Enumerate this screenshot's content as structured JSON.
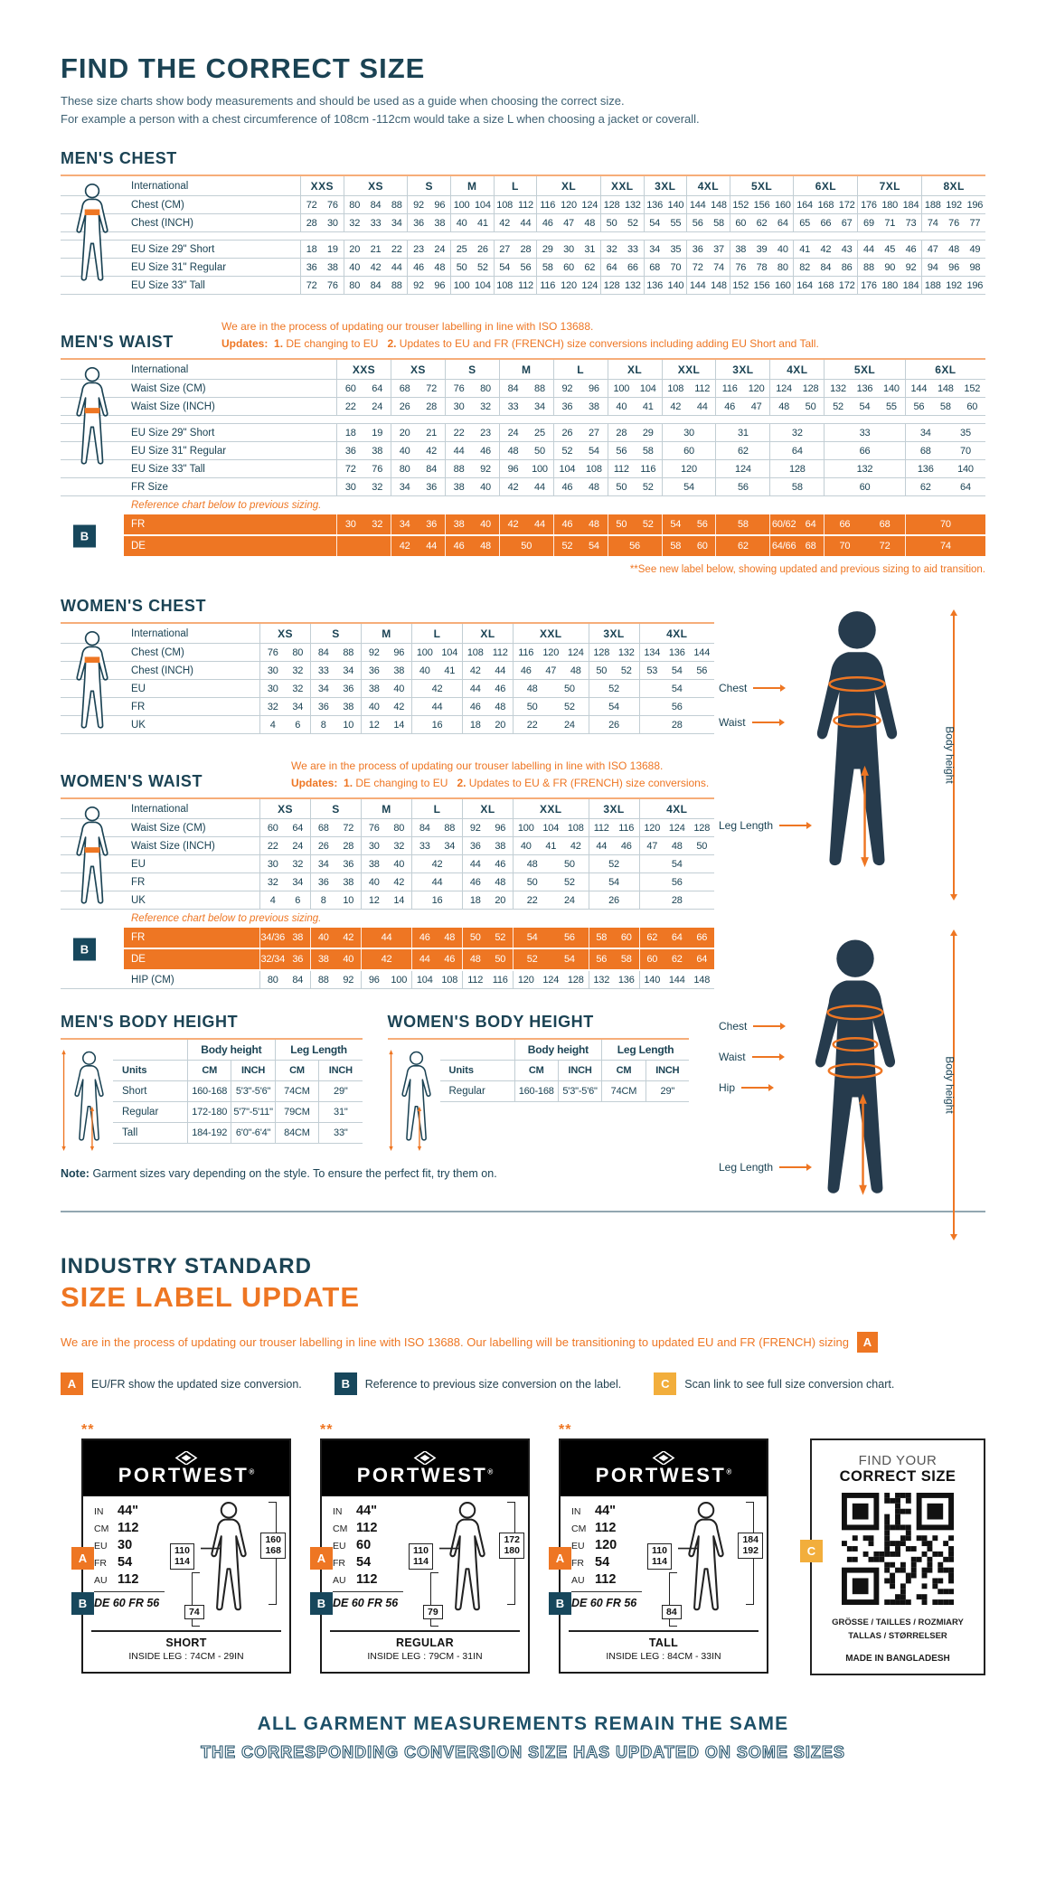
{
  "colors": {
    "navy": "#17475c",
    "orange": "#ee7623",
    "amber": "#f2ae3c"
  },
  "header": {
    "title": "FIND THE CORRECT SIZE",
    "intro1": "These size charts show body measurements and should be used as a guide when choosing the correct size.",
    "intro2": "For example a person with a chest circumference of 108cm -112cm would take a size L when choosing a jacket or coverall."
  },
  "mens_chest": {
    "heading": "MEN'S CHEST",
    "corner": "International",
    "label_col": 195,
    "figure": "chest",
    "columns": [
      [
        "XXS",
        2
      ],
      [
        "XS",
        3
      ],
      [
        "S",
        2
      ],
      [
        "M",
        2
      ],
      [
        "L",
        2
      ],
      [
        "XL",
        3
      ],
      [
        "XXL",
        2
      ],
      [
        "3XL",
        2
      ],
      [
        "4XL",
        2
      ],
      [
        "5XL",
        3
      ],
      [
        "6XL",
        3
      ],
      [
        "7XL",
        3
      ],
      [
        "8XL",
        3
      ]
    ],
    "rows": [
      {
        "label": "Chest (CM)",
        "cells": [
          "72 76",
          "80 84 88",
          "92 96",
          "100 104",
          "108 112",
          "116 120 124",
          "128 132",
          "136 140",
          "144 148",
          "152 156 160",
          "164 168 172",
          "176 180 184",
          "188 192 196"
        ]
      },
      {
        "label": "Chest (INCH)",
        "cells": [
          "28 30",
          "32 33 34",
          "36 38",
          "40 41",
          "42 44",
          "46 47 48",
          "50 52",
          "54 55",
          "56 58",
          "60 62 64",
          "65 66 67",
          "69 71 73",
          "74 76 77"
        ]
      },
      {
        "gap": true
      },
      {
        "label": "EU Size 29\" Short",
        "cells": [
          "18 19",
          "20 21 22",
          "23 24",
          "25 26",
          "27 28",
          "29 30 31",
          "32 33",
          "34 35",
          "36 37",
          "38 39 40",
          "41 42 43",
          "44 45 46",
          "47 48 49"
        ]
      },
      {
        "label": "EU Size 31\" Regular",
        "cells": [
          "36 38",
          "40 42 44",
          "46 48",
          "50 52",
          "54 56",
          "58 60 62",
          "64 66",
          "68 70",
          "72 74",
          "76 78 80",
          "82 84 86",
          "88 90 92",
          "94 96 98"
        ]
      },
      {
        "label": "EU Size 33\" Tall",
        "cells": [
          "72 76",
          "80 84 88",
          "92 96",
          "100 104",
          "108 112",
          "116 120 124",
          "128 132",
          "136 140",
          "144 148",
          "152 156 160",
          "164 168 172",
          "176 180 184",
          "188 192 196"
        ]
      }
    ]
  },
  "mens_waist": {
    "heading": "MEN'S WAIST",
    "corner": "International",
    "label_col": 235,
    "figure": "waist",
    "note": {
      "line1": "We are in the process of updating our trouser labelling in line with ISO 13688.",
      "updates_label": "Updates:",
      "item1_n": "1.",
      "item1": "DE changing to EU",
      "item2_n": "2.",
      "item2": "Updates to EU and FR (FRENCH) size conversions including adding EU Short and Tall."
    },
    "columns": [
      [
        "XXS",
        2
      ],
      [
        "XS",
        2
      ],
      [
        "S",
        2
      ],
      [
        "M",
        2
      ],
      [
        "L",
        2
      ],
      [
        "XL",
        2
      ],
      [
        "XXL",
        2
      ],
      [
        "3XL",
        2
      ],
      [
        "4XL",
        2
      ],
      [
        "5XL",
        3
      ],
      [
        "6XL",
        3
      ]
    ],
    "rows": [
      {
        "label": "Waist Size (CM)",
        "cells": [
          "60 64",
          "68 72",
          "76 80",
          "84 88",
          "92 96",
          "100 104",
          "108 112",
          "116 120",
          "124 128",
          "132 136 140",
          "144 148 152"
        ]
      },
      {
        "label": "Waist Size (INCH)",
        "cells": [
          "22 24",
          "26 28",
          "30 32",
          "33 34",
          "36 38",
          "40 41",
          "42 44",
          "46 47",
          "48 50",
          "52 54 55",
          "56 58 60"
        ]
      },
      {
        "gap": true
      },
      {
        "label": "EU Size 29\" Short",
        "cells": [
          "18 19",
          "20 21",
          "22 23",
          "24 25",
          "26 27",
          "28 29",
          "30",
          "31",
          "32",
          "33",
          "34 35"
        ]
      },
      {
        "label": "EU Size 31\" Regular",
        "cells": [
          "36 38",
          "40 42",
          "44 46",
          "48 50",
          "52 54",
          "56 58",
          "60",
          "62",
          "64",
          "66",
          "68 70"
        ]
      },
      {
        "label": "EU Size 33\" Tall",
        "cells": [
          "72 76",
          "80 84",
          "88 92",
          "96 100",
          "104 108",
          "112 116",
          "120",
          "124",
          "128",
          "132",
          "136 140"
        ]
      },
      {
        "label": "FR Size",
        "cells": [
          "30 32",
          "34 36",
          "38 40",
          "42 44",
          "46 48",
          "50 52",
          "54",
          "56",
          "58",
          "60",
          "62 64"
        ]
      },
      {
        "note": "Reference chart below to previous sizing."
      },
      {
        "orange_block": {
          "badge": "B",
          "rows": [
            {
              "label": "FR",
              "cells": [
                "30 32",
                "34 36",
                "38 40",
                "42 44",
                "46 48",
                "50 52",
                "54 56",
                "58",
                "60/62 64",
                "66 68",
                "70"
              ]
            },
            {
              "label": "DE",
              "cells": [
                "",
                "42 44",
                "46 48",
                "50",
                "52 54",
                "56",
                "58 60",
                "62",
                "64/66 68",
                "70 72",
                "74"
              ]
            }
          ]
        }
      },
      {
        "footnote": "**See new label below, showing updated and previous sizing to aid transition."
      }
    ]
  },
  "womens_chest": {
    "heading": "WOMEN'S CHEST",
    "corner": "International",
    "label_col": 150,
    "figure": "chest_f",
    "columns": [
      [
        "XS",
        2
      ],
      [
        "S",
        2
      ],
      [
        "M",
        2
      ],
      [
        "L",
        2
      ],
      [
        "XL",
        2
      ],
      [
        "XXL",
        3
      ],
      [
        "3XL",
        2
      ],
      [
        "4XL",
        3
      ]
    ],
    "rows": [
      {
        "label": "Chest (CM)",
        "cells": [
          "76 80",
          "84 88",
          "92 96",
          "100 104",
          "108 112",
          "116 120 124",
          "128 132",
          "134 136 144"
        ]
      },
      {
        "label": "Chest (INCH)",
        "cells": [
          "30 32",
          "33 34",
          "36 38",
          "40 41",
          "42 44",
          "46 47 48",
          "50 52",
          "53 54 56"
        ]
      },
      {
        "label": "EU",
        "cells": [
          "30 32",
          "34 36",
          "38 40",
          "42",
          "44 46",
          "48 50",
          "52",
          "54"
        ]
      },
      {
        "label": "FR",
        "cells": [
          "32 34",
          "36 38",
          "40 42",
          "44",
          "46 48",
          "50 52",
          "54",
          "56"
        ]
      },
      {
        "label": "UK",
        "cells": [
          "4 6",
          "8 10",
          "12 14",
          "16",
          "18 20",
          "22 24",
          "26",
          "28"
        ]
      }
    ]
  },
  "womens_waist": {
    "heading": "WOMEN'S WAIST",
    "corner": "International",
    "label_col": 150,
    "figure": "waist_f",
    "note": {
      "line1": "We are in the process of updating our trouser labelling in line with ISO 13688.",
      "updates_label": "Updates:",
      "item1_n": "1.",
      "item1": "DE changing to EU",
      "item2_n": "2.",
      "item2": "Updates to EU & FR (FRENCH) size conversions."
    },
    "columns": [
      [
        "XS",
        2
      ],
      [
        "S",
        2
      ],
      [
        "M",
        2
      ],
      [
        "L",
        2
      ],
      [
        "XL",
        2
      ],
      [
        "XXL",
        3
      ],
      [
        "3XL",
        2
      ],
      [
        "4XL",
        3
      ]
    ],
    "rows": [
      {
        "label": "Waist Size (CM)",
        "cells": [
          "60 64",
          "68 72",
          "76 80",
          "84 88",
          "92 96",
          "100 104 108",
          "112 116",
          "120 124 128"
        ]
      },
      {
        "label": "Waist Size (INCH)",
        "cells": [
          "22 24",
          "26 28",
          "30 32",
          "33 34",
          "36 38",
          "40 41 42",
          "44 46",
          "47 48 50"
        ]
      },
      {
        "label": "EU",
        "cells": [
          "30 32",
          "34 36",
          "38 40",
          "42",
          "44 46",
          "48 50",
          "52",
          "54"
        ]
      },
      {
        "label": "FR",
        "cells": [
          "32 34",
          "36 38",
          "40 42",
          "44",
          "46 48",
          "50 52",
          "54",
          "56"
        ]
      },
      {
        "label": "UK",
        "cells": [
          "4 6",
          "8 10",
          "12 14",
          "16",
          "18 20",
          "22 24",
          "26",
          "28"
        ]
      },
      {
        "note": "Reference chart below to previous sizing."
      },
      {
        "orange_block": {
          "badge": "B",
          "rows": [
            {
              "label": "FR",
              "cells": [
                "34/36 38",
                "40 42",
                "44",
                "46 48",
                "50 52",
                "54 56",
                "58 60",
                "62 64 66"
              ]
            },
            {
              "label": "DE",
              "cells": [
                "32/34 36",
                "38 40",
                "42",
                "44 46",
                "48 50",
                "52 54",
                "56 58",
                "60 62 64"
              ]
            }
          ]
        }
      },
      {
        "label": "HIP (CM)",
        "cells": [
          "80 84",
          "88 92",
          "96 100",
          "104 108",
          "112 116",
          "120 124 128",
          "132 136",
          "140 144 148"
        ]
      }
    ]
  },
  "height_tables": {
    "mens": {
      "heading": "MEN'S BODY HEIGHT",
      "group1": "Body height",
      "group2": "Leg Length",
      "units": "Units",
      "unit_cols": [
        "CM",
        "INCH",
        "CM",
        "INCH"
      ],
      "rows": [
        [
          "Short",
          "160-168",
          "5'3\"-5'6\"",
          "74CM",
          "29\""
        ],
        [
          "Regular",
          "172-180",
          "5'7\"-5'11\"",
          "79CM",
          "31\""
        ],
        [
          "Tall",
          "184-192",
          "6'0\"-6'4\"",
          "84CM",
          "33\""
        ]
      ]
    },
    "womens": {
      "heading": "WOMEN'S BODY HEIGHT",
      "group1": "Body height",
      "group2": "Leg Length",
      "units": "Units",
      "unit_cols": [
        "CM",
        "INCH",
        "CM",
        "INCH"
      ],
      "rows": [
        [
          "Regular",
          "160-168",
          "5'3\"-5'6\"",
          "74CM",
          "29\""
        ]
      ]
    }
  },
  "figures": {
    "male": {
      "labels": [
        "Chest",
        "Waist",
        "Leg Length"
      ],
      "vertical": "Body height"
    },
    "female": {
      "labels": [
        "Chest",
        "Waist",
        "Hip",
        "Leg Length"
      ],
      "vertical": "Body height"
    }
  },
  "note": {
    "bold": "Note:",
    "text": "Garment sizes vary depending on the style. To ensure the perfect fit, try them on."
  },
  "industry": {
    "heading1": "INDUSTRY STANDARD",
    "heading2": "SIZE LABEL UPDATE",
    "sentence": "We are in the process of updating our trouser labelling in line with ISO 13688. Our labelling will be transitioning to updated EU and FR (FRENCH) sizing",
    "sentence_badge": "A",
    "legend": [
      {
        "badge": "A",
        "color": "orange",
        "text": "EU/FR show the updated size conversion."
      },
      {
        "badge": "B",
        "color": "navy",
        "text": "Reference to previous size conversion on the label."
      },
      {
        "badge": "C",
        "color": "amber",
        "text": "Scan link to see full size conversion chart."
      }
    ]
  },
  "labels_section": {
    "stars": "**",
    "brand": "PORTWEST",
    "reg": "®",
    "cards": [
      {
        "fields": [
          [
            "IN",
            "44\""
          ],
          [
            "CM",
            "112"
          ],
          [
            "EU",
            "30"
          ],
          [
            "FR",
            "54"
          ],
          [
            "AU",
            "112"
          ]
        ],
        "prev": "DE 60 FR 56",
        "waist_box": "110 114",
        "height_box": "160 168",
        "leg_box": "74",
        "variant": "SHORT",
        "inside_leg": "INSIDE LEG : 74CM - 29IN"
      },
      {
        "fields": [
          [
            "IN",
            "44\""
          ],
          [
            "CM",
            "112"
          ],
          [
            "EU",
            "60"
          ],
          [
            "FR",
            "54"
          ],
          [
            "AU",
            "112"
          ]
        ],
        "prev": "DE 60 FR 56",
        "waist_box": "110 114",
        "height_box": "172 180",
        "leg_box": "79",
        "variant": "REGULAR",
        "inside_leg": "INSIDE LEG : 79CM - 31IN"
      },
      {
        "fields": [
          [
            "IN",
            "44\""
          ],
          [
            "CM",
            "112"
          ],
          [
            "EU",
            "120"
          ],
          [
            "FR",
            "54"
          ],
          [
            "AU",
            "112"
          ]
        ],
        "prev": "DE 60 FR 56",
        "waist_box": "110 114",
        "height_box": "184 192",
        "leg_box": "84",
        "variant": "TALL",
        "inside_leg": "INSI DE LEG : 84CM - 33IN"
      }
    ],
    "qr_card": {
      "badge": "C",
      "line1": "FIND YOUR",
      "line2": "CORRECT SIZE",
      "langs1": "GRÖSSE / TAILLES / ROZMIARY",
      "langs2": "TALLAS / STØRRELSER",
      "made": "MADE IN BANGLADESH"
    }
  },
  "footer": {
    "line1": "ALL GARMENT MEASUREMENTS REMAIN THE SAME",
    "line2": "THE CORRESPONDING CONVERSION SIZE HAS UPDATED ON SOME SIZES"
  }
}
